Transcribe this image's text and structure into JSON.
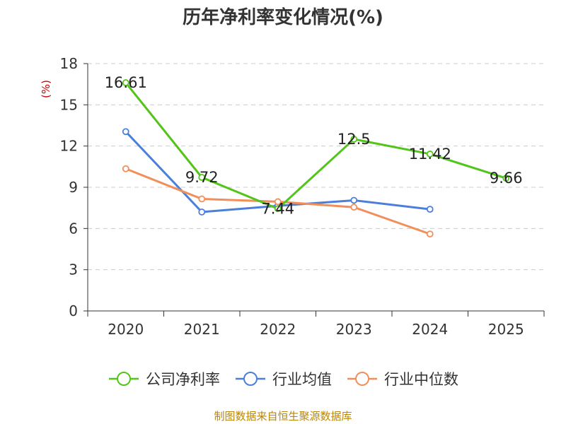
{
  "chart_data": {
    "type": "line",
    "title": "历年净利率变化情况(%)",
    "ylabel": "(%)",
    "xlabel": "",
    "categories": [
      "2020",
      "2021",
      "2022",
      "2023",
      "2024",
      "2025"
    ],
    "ylim": [
      0,
      18
    ],
    "yticks": [
      0,
      3,
      6,
      9,
      12,
      15,
      18
    ],
    "grid": true,
    "legend_position": "bottom",
    "series": [
      {
        "name": "公司净利率",
        "color": "#52c41a",
        "labeled": true,
        "values": [
          16.61,
          9.72,
          7.44,
          12.5,
          11.42,
          9.66
        ],
        "labels": [
          "16.61",
          "9.72",
          "7.44",
          "12.5",
          "11.42",
          "9.66"
        ]
      },
      {
        "name": "行业均值",
        "color": "#4a7fdc",
        "labeled": false,
        "values": [
          13.05,
          7.2,
          7.65,
          8.05,
          7.4,
          null
        ]
      },
      {
        "name": "行业中位数",
        "color": "#f28e5a",
        "labeled": false,
        "values": [
          10.35,
          8.15,
          7.95,
          7.55,
          5.6,
          null
        ]
      }
    ]
  },
  "source_note": "制图数据来自恒生聚源数据库"
}
